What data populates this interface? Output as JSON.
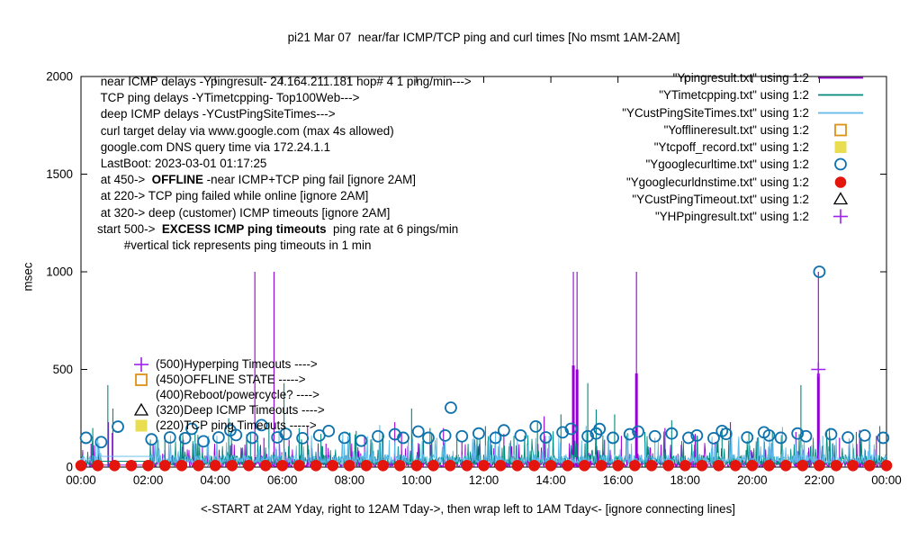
{
  "chart_data": {
    "type": "line+scatter",
    "title": "pi21 Mar 07  near/far ICMP/TCP ping and curl times [No msmt 1AM-2AM]",
    "ylabel": "msec",
    "xlabel": "<-START at 2AM Yday, right to 12AM Tday->, then wrap left to 1AM Tday<- [ignore connecting lines]",
    "ylim": [
      0,
      2000
    ],
    "yticks": [
      "0",
      "500",
      "1000",
      "1500",
      "2000"
    ],
    "x_hours": [
      0,
      24
    ],
    "xticks": [
      "00:00",
      "02:00",
      "04:00",
      "06:00",
      "08:00",
      "10:00",
      "12:00",
      "14:00",
      "16:00",
      "18:00",
      "20:00",
      "22:00",
      "00:00"
    ],
    "grid": false,
    "legend_position": "inside top-right",
    "info_lines": [
      {
        "pre": " near ICMP delays -Ypingresult- 24.164.211.181 hop# 4 1 ping/min--->",
        "bold": "",
        "post": ""
      },
      {
        "pre": " TCP ping delays -YTimetcpping- Top100Web--->",
        "bold": "",
        "post": ""
      },
      {
        "pre": " deep ICMP delays -YCustPingSiteTimes--->",
        "bold": "",
        "post": ""
      },
      {
        "pre": " curl target delay via www.google.com (max 4s allowed)",
        "bold": "",
        "post": ""
      },
      {
        "pre": " google.com DNS query time via 172.24.1.1",
        "bold": "",
        "post": ""
      },
      {
        "pre": " LastBoot: 2023-03-01 01:17:25",
        "bold": "",
        "post": ""
      },
      {
        "pre": " at 450->  ",
        "bold": "OFFLINE",
        "post": " -near ICMP+TCP ping fail [ignore 2AM]"
      },
      {
        "pre": " at 220-> TCP ping failed while online [ignore 2AM]",
        "bold": "",
        "post": ""
      },
      {
        "pre": " at 320-> deep (customer) ICMP timeouts [ignore 2AM]",
        "bold": "",
        "post": ""
      },
      {
        "pre": "start 500->  ",
        "bold": "EXCESS ICMP ping timeouts",
        "post": "  ping rate at 6 pings/min"
      },
      {
        "pre": "        #vertical tick represents ping timeouts in 1 min",
        "bold": "",
        "post": ""
      }
    ],
    "legend": [
      {
        "label": "\"Ypingresult.txt\" using 1:2",
        "marker": "line",
        "color": "#9400d3"
      },
      {
        "label": "\"YTimetcpping.txt\" using 1:2",
        "marker": "line",
        "color": "#00897b"
      },
      {
        "label": "\"YCustPingSiteTimes.txt\" using 1:2",
        "marker": "line",
        "color": "#5db9e8"
      },
      {
        "label": "\"Yofflineresult.txt\" using 1:2",
        "marker": "square-open",
        "color": "#de9118"
      },
      {
        "label": "\"Ytcpoff_record.txt\" using 1:2",
        "marker": "square-filled",
        "color": "#e9de4f"
      },
      {
        "label": "\"Ygooglecurltime.txt\" using 1:2",
        "marker": "circle-open",
        "color": "#0f72ad"
      },
      {
        "label": "\"Ygooglecurldnstime.txt\" using 1:2",
        "marker": "circle-filled",
        "color": "#e4150c"
      },
      {
        "label": "\"YCustPingTimeout.txt\" using 1:2",
        "marker": "triangle-open",
        "color": "#000000"
      },
      {
        "label": "\"YHPpingresult.txt\" using 1:2",
        "marker": "plus",
        "color": "#a020f0"
      }
    ],
    "level_annotations": [
      {
        "marker": "plus",
        "color": "#a020f0",
        "text": "(500)Hyperping Timeouts ---->"
      },
      {
        "marker": "square-open",
        "color": "#de9118",
        "text": "(450)OFFLINE STATE ----->"
      },
      {
        "marker": "none",
        "color": "",
        "text": "(400)Reboot/powercycle? ---->"
      },
      {
        "marker": "triangle-open",
        "color": "#000000",
        "text": "(320)Deep ICMP Timeouts ---->"
      },
      {
        "marker": "square-filled",
        "color": "#e9de4f",
        "text": "(220)TCP ping Timeouts ----->"
      }
    ],
    "series": [
      {
        "file": "Ypingresult.txt",
        "style": "line",
        "color": "#9400d3",
        "seed": 11,
        "noise": {
          "base": 3,
          "jitter": 120,
          "tall_chance": 0.1
        },
        "flat": {
          "from": 0.6,
          "to": 2.04,
          "value": 10
        },
        "spikes": [
          [
            0.3,
            120
          ],
          [
            0.82,
            230
          ],
          [
            0.93,
            175
          ],
          [
            3.05,
            140
          ],
          [
            4.5,
            120
          ],
          [
            5.18,
            1000
          ],
          [
            5.45,
            150
          ],
          [
            5.75,
            1000
          ],
          [
            6.2,
            140
          ],
          [
            6.75,
            210
          ],
          [
            7.3,
            120
          ],
          [
            8.45,
            160
          ],
          [
            9.35,
            230
          ],
          [
            9.55,
            180
          ],
          [
            10.2,
            140
          ],
          [
            10.8,
            200
          ],
          [
            11.35,
            130
          ],
          [
            12.2,
            150
          ],
          [
            12.6,
            170
          ],
          [
            13.3,
            120
          ],
          [
            13.8,
            260
          ],
          [
            14.67,
            1000,
            520
          ],
          [
            14.78,
            1000,
            500
          ],
          [
            15.6,
            140
          ],
          [
            16.1,
            160
          ],
          [
            16.55,
            1000,
            480
          ],
          [
            17.4,
            200
          ],
          [
            18.3,
            170
          ],
          [
            18.9,
            130
          ],
          [
            19.35,
            230
          ],
          [
            20.15,
            150
          ],
          [
            20.9,
            130
          ],
          [
            21.3,
            180
          ],
          [
            21.97,
            1000,
            480
          ],
          [
            22.6,
            150
          ],
          [
            23.2,
            190
          ],
          [
            23.7,
            160
          ]
        ]
      },
      {
        "file": "YTimetcpping.txt",
        "style": "line",
        "color": "#00897b",
        "seed": 22,
        "noise": {
          "base": 12,
          "jitter": 170,
          "tall_chance": 0.09
        },
        "flat": {
          "from": 0.6,
          "to": 2.04,
          "value": 30
        },
        "spikes": [
          [
            0.35,
            200
          ],
          [
            0.8,
            420
          ],
          [
            0.95,
            300
          ],
          [
            2.5,
            160
          ],
          [
            3.4,
            180
          ],
          [
            4.4,
            250
          ],
          [
            5.05,
            180
          ],
          [
            5.6,
            230
          ],
          [
            6.05,
            430
          ],
          [
            6.5,
            200
          ],
          [
            7.15,
            170
          ],
          [
            8.2,
            185
          ],
          [
            9.0,
            160
          ],
          [
            9.85,
            300
          ],
          [
            10.4,
            200
          ],
          [
            11.2,
            175
          ],
          [
            12.05,
            210
          ],
          [
            12.9,
            160
          ],
          [
            13.6,
            230
          ],
          [
            14.3,
            270
          ],
          [
            15.1,
            430
          ],
          [
            15.35,
            295
          ],
          [
            15.9,
            270
          ],
          [
            16.8,
            180
          ],
          [
            17.6,
            240
          ],
          [
            18.35,
            160
          ],
          [
            19.1,
            200
          ],
          [
            19.9,
            175
          ],
          [
            20.6,
            185
          ],
          [
            21.45,
            420
          ],
          [
            22.3,
            200
          ],
          [
            23.1,
            180
          ],
          [
            23.8,
            210
          ]
        ]
      },
      {
        "file": "YCustPingSiteTimes.txt",
        "style": "line",
        "color": "#5db9e8",
        "seed": 33,
        "noise": {
          "base": 22,
          "jitter": 140,
          "tall_chance": 0.08
        },
        "flat": {
          "from": 0.6,
          "to": 2.04,
          "value": 55
        },
        "spikes": [
          [
            0.5,
            150
          ],
          [
            2.3,
            140
          ],
          [
            3.8,
            160
          ],
          [
            5.9,
            200
          ],
          [
            7.8,
            170
          ],
          [
            8.9,
            215
          ],
          [
            10.6,
            150
          ],
          [
            12.35,
            185
          ],
          [
            13.95,
            160
          ],
          [
            15.05,
            210
          ],
          [
            16.3,
            170
          ],
          [
            17.1,
            150
          ],
          [
            18.8,
            155
          ],
          [
            19.6,
            140
          ],
          [
            20.9,
            205
          ],
          [
            22.1,
            160
          ],
          [
            23.5,
            170
          ]
        ]
      },
      {
        "file": "Yofflineresult.txt",
        "style": "square-open",
        "color": "#de9118",
        "points": []
      },
      {
        "file": "Ytcpoff_record.txt",
        "style": "square-filled",
        "color": "#e9de4f",
        "points": []
      },
      {
        "file": "Ygooglecurltime.txt",
        "style": "circle-open",
        "color": "#0f72ad",
        "points": [
          [
            0.15,
            150
          ],
          [
            0.6,
            128
          ],
          [
            1.1,
            207
          ],
          [
            2.1,
            142
          ],
          [
            2.65,
            152
          ],
          [
            3.1,
            148
          ],
          [
            3.3,
            196
          ],
          [
            3.65,
            132
          ],
          [
            4.1,
            152
          ],
          [
            4.45,
            188
          ],
          [
            4.62,
            164
          ],
          [
            5.1,
            150
          ],
          [
            5.38,
            215
          ],
          [
            5.85,
            152
          ],
          [
            6.1,
            170
          ],
          [
            6.6,
            148
          ],
          [
            7.1,
            162
          ],
          [
            7.38,
            185
          ],
          [
            7.85,
            150
          ],
          [
            8.35,
            135
          ],
          [
            8.85,
            158
          ],
          [
            9.35,
            168
          ],
          [
            9.6,
            150
          ],
          [
            10.05,
            182
          ],
          [
            10.35,
            150
          ],
          [
            10.85,
            162
          ],
          [
            11.02,
            304
          ],
          [
            11.35,
            158
          ],
          [
            11.85,
            172
          ],
          [
            12.35,
            150
          ],
          [
            12.6,
            188
          ],
          [
            13.1,
            162
          ],
          [
            13.55,
            208
          ],
          [
            13.85,
            152
          ],
          [
            14.35,
            178
          ],
          [
            14.6,
            196
          ],
          [
            15.1,
            158
          ],
          [
            15.35,
            172
          ],
          [
            15.45,
            195
          ],
          [
            15.85,
            150
          ],
          [
            16.35,
            168
          ],
          [
            16.6,
            182
          ],
          [
            17.1,
            158
          ],
          [
            17.6,
            172
          ],
          [
            18.1,
            150
          ],
          [
            18.35,
            162
          ],
          [
            18.85,
            148
          ],
          [
            19.1,
            185
          ],
          [
            19.22,
            170
          ],
          [
            19.85,
            152
          ],
          [
            20.35,
            178
          ],
          [
            20.5,
            162
          ],
          [
            20.85,
            150
          ],
          [
            21.35,
            172
          ],
          [
            21.6,
            158
          ],
          [
            22.0,
            1000
          ],
          [
            22.35,
            168
          ],
          [
            22.85,
            152
          ],
          [
            23.35,
            162
          ],
          [
            23.9,
            150
          ]
        ]
      },
      {
        "file": "Ygooglecurldnstime.txt",
        "style": "circle-filled",
        "color": "#e4150c",
        "rule": {
          "from": 0,
          "to": 24,
          "step": 0.5,
          "value": 8
        }
      },
      {
        "file": "YCustPingTimeout.txt",
        "style": "triangle-open",
        "color": "#000000",
        "points": []
      },
      {
        "file": "YHPpingresult.txt",
        "style": "plus",
        "color": "#a020f0",
        "points": [
          [
            21.97,
            500
          ]
        ]
      }
    ]
  }
}
